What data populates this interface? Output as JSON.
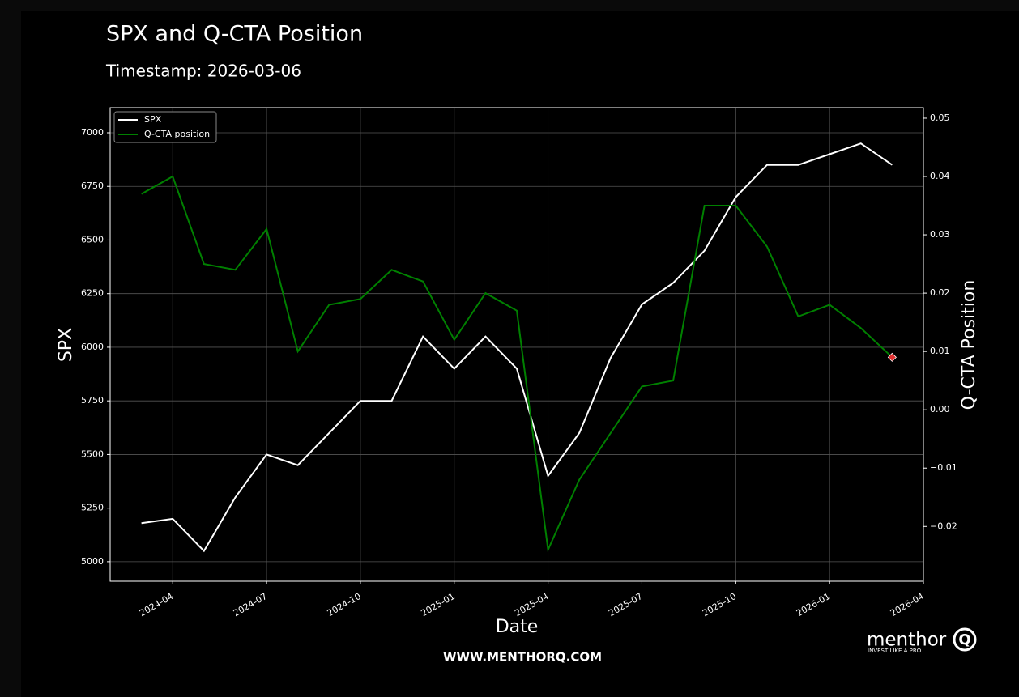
{
  "chart_data": {
    "type": "line",
    "title": "SPX and Q-CTA Position",
    "subtitle": "Timestamp: 2026-03-06",
    "xlabel": "Date",
    "ylabel": "SPX",
    "y2label": "Q-CTA Position",
    "footer": "WWW.MENTHORQ.COM",
    "brand": "menthor",
    "brand_mark": "Q",
    "tagline": "INVEST LIKE A PRO",
    "legend": "upper left",
    "grid": true,
    "x": [
      "2024-03",
      "2024-04",
      "2024-05",
      "2024-06",
      "2024-07",
      "2024-08",
      "2024-09",
      "2024-10",
      "2024-11",
      "2024-12",
      "2025-01",
      "2025-02",
      "2025-03",
      "2025-04",
      "2025-05",
      "2025-06",
      "2025-07",
      "2025-08",
      "2025-09",
      "2025-10",
      "2025-11",
      "2025-12",
      "2026-01",
      "2026-02",
      "2026-03"
    ],
    "series": [
      {
        "name": "SPX",
        "color": "#ffffff",
        "axis": "y",
        "values": [
          5180,
          5200,
          5050,
          5300,
          5500,
          5450,
          5600,
          5750,
          5750,
          6050,
          5900,
          6050,
          5900,
          5400,
          5600,
          5950,
          6200,
          6300,
          6450,
          6700,
          6850,
          6850,
          6900,
          6950,
          6850
        ]
      },
      {
        "name": "Q-CTA position",
        "color": "#008000",
        "axis": "y2",
        "values": [
          0.037,
          0.04,
          0.025,
          0.024,
          0.031,
          0.01,
          0.018,
          0.019,
          0.024,
          0.022,
          0.012,
          0.02,
          0.017,
          -0.024,
          -0.012,
          -0.004,
          0.004,
          0.005,
          0.035,
          0.035,
          0.028,
          0.016,
          0.018,
          0.014,
          0.009
        ]
      }
    ],
    "xlim": [
      "2024-02",
      "2026-04"
    ],
    "xticks": [
      "2024-04",
      "2024-07",
      "2024-10",
      "2025-01",
      "2025-04",
      "2025-07",
      "2025-10",
      "2026-01",
      "2026-04"
    ],
    "ylim": [
      4909,
      7117
    ],
    "yticks": [
      5000,
      5250,
      5500,
      5750,
      6000,
      6250,
      6500,
      6750,
      7000
    ],
    "y2lim": [
      -0.0294,
      0.0518
    ],
    "y2ticks": [
      {
        "value": -0.02,
        "label": "−0.02"
      },
      {
        "value": -0.01,
        "label": "−0.01"
      },
      {
        "value": 0,
        "label": "0.00"
      },
      {
        "value": 0.01,
        "label": "0.01"
      },
      {
        "value": 0.02,
        "label": "0.02"
      },
      {
        "value": 0.03,
        "label": "0.03"
      },
      {
        "value": 0.04,
        "label": "0.04"
      },
      {
        "value": 0.05,
        "label": "0.05"
      }
    ],
    "marker_color": "#e03030"
  }
}
